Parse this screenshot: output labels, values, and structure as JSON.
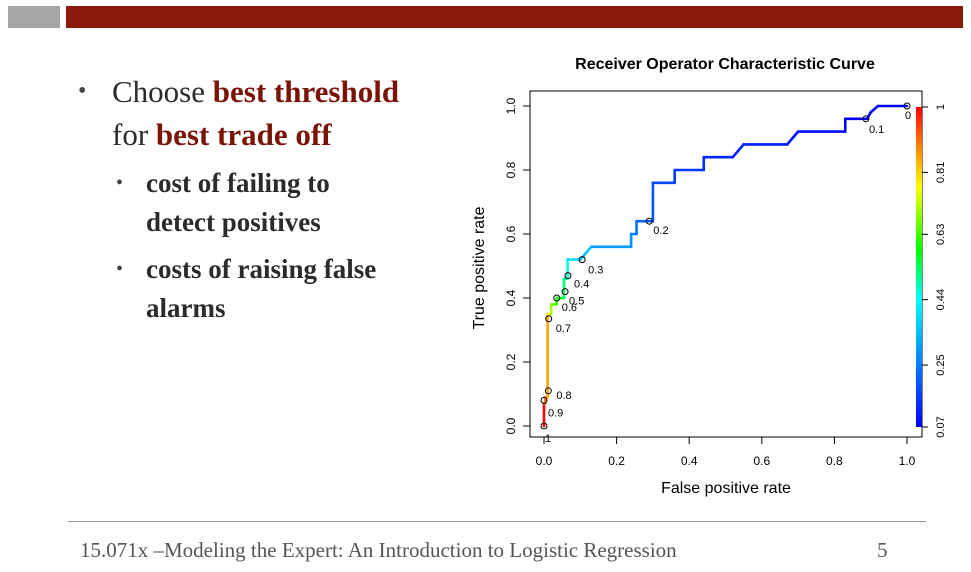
{
  "slide": {
    "bullet1": {
      "prefix": "Choose ",
      "bold1": "best threshold",
      "middle": "for ",
      "bold2": "best trade off"
    },
    "subbullets": [
      {
        "text_line1": "cost of failing to",
        "text_line2": "detect positives"
      },
      {
        "text_line1": "costs of raising false",
        "text_line2": "alarms"
      }
    ],
    "bullet_glyph": "•"
  },
  "footer": {
    "text": "15.071x –Modeling the Expert: An Introduction to Logistic Regression",
    "page_number": "5"
  },
  "colors": {
    "accent_bar": "#8b1a0c",
    "gray_block": "#a6a6a6",
    "highlight_text": "#7a1406"
  },
  "chart_data": {
    "type": "line",
    "title": "Receiver Operator Characteristic Curve",
    "xlabel": "False positive rate",
    "ylabel": "True positive rate",
    "xlim": [
      0,
      1
    ],
    "ylim": [
      0,
      1
    ],
    "x_ticks": [
      "0.0",
      "0.2",
      "0.4",
      "0.6",
      "0.8",
      "1.0"
    ],
    "y_ticks": [
      "0.0",
      "0.2",
      "0.4",
      "0.6",
      "0.8",
      "1.0"
    ],
    "grid": false,
    "curve": {
      "x": [
        0.0,
        0.0,
        0.003,
        0.003,
        0.01,
        0.01,
        0.02,
        0.02,
        0.035,
        0.035,
        0.055,
        0.055,
        0.065,
        0.065,
        0.1,
        0.13,
        0.24,
        0.24,
        0.255,
        0.255,
        0.28,
        0.3,
        0.3,
        0.36,
        0.36,
        0.44,
        0.44,
        0.52,
        0.55,
        0.67,
        0.7,
        0.83,
        0.83,
        0.88,
        0.89,
        0.9,
        0.92,
        1.0
      ],
      "y": [
        0.0,
        0.07,
        0.07,
        0.09,
        0.09,
        0.35,
        0.35,
        0.38,
        0.38,
        0.4,
        0.4,
        0.46,
        0.46,
        0.52,
        0.52,
        0.56,
        0.56,
        0.6,
        0.6,
        0.64,
        0.64,
        0.64,
        0.76,
        0.76,
        0.8,
        0.8,
        0.84,
        0.84,
        0.88,
        0.88,
        0.92,
        0.92,
        0.96,
        0.96,
        0.96,
        0.98,
        1.0,
        1.0
      ],
      "cutoff": [
        1.0,
        0.93,
        0.9,
        0.88,
        0.85,
        0.75,
        0.7,
        0.66,
        0.62,
        0.58,
        0.52,
        0.5,
        0.46,
        0.4,
        0.36,
        0.3,
        0.28,
        0.26,
        0.24,
        0.22,
        0.2,
        0.19,
        0.17,
        0.16,
        0.15,
        0.14,
        0.13,
        0.12,
        0.11,
        0.1,
        0.09,
        0.08,
        0.07,
        0.07,
        0.07,
        0.07,
        0.07,
        0.07
      ]
    },
    "threshold_points": [
      {
        "label": "1",
        "x": 0.0,
        "y": 0.0
      },
      {
        "label": "0.9",
        "x": 0.0,
        "y": 0.08
      },
      {
        "label": "0.8",
        "x": 0.012,
        "y": 0.11
      },
      {
        "label": "0.7",
        "x": 0.013,
        "y": 0.335
      },
      {
        "label": "0.6",
        "x": 0.035,
        "y": 0.4
      },
      {
        "label": "0.5",
        "x": 0.058,
        "y": 0.42
      },
      {
        "label": "0.4",
        "x": 0.066,
        "y": 0.47
      },
      {
        "label": "0.3",
        "x": 0.105,
        "y": 0.52
      },
      {
        "label": "0.2",
        "x": 0.29,
        "y": 0.64
      },
      {
        "label": "0.1",
        "x": 0.887,
        "y": 0.96
      },
      {
        "label": "0",
        "x": 1.0,
        "y": 1.0
      }
    ],
    "colorbar": {
      "labels": [
        "1",
        "0.81",
        "0.63",
        "0.44",
        "0.25",
        "0.07"
      ],
      "min": 0.07,
      "max": 1.0,
      "placement": "right"
    }
  }
}
